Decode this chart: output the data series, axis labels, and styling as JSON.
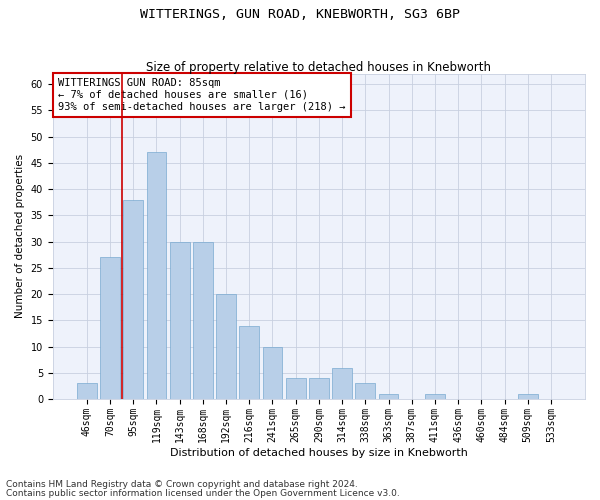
{
  "title": "WITTERINGS, GUN ROAD, KNEBWORTH, SG3 6BP",
  "subtitle": "Size of property relative to detached houses in Knebworth",
  "xlabel": "Distribution of detached houses by size in Knebworth",
  "ylabel": "Number of detached properties",
  "categories": [
    "46sqm",
    "70sqm",
    "95sqm",
    "119sqm",
    "143sqm",
    "168sqm",
    "192sqm",
    "216sqm",
    "241sqm",
    "265sqm",
    "290sqm",
    "314sqm",
    "338sqm",
    "363sqm",
    "387sqm",
    "411sqm",
    "436sqm",
    "460sqm",
    "484sqm",
    "509sqm",
    "533sqm"
  ],
  "values": [
    3,
    27,
    38,
    47,
    30,
    30,
    20,
    14,
    10,
    4,
    4,
    6,
    3,
    1,
    0,
    1,
    0,
    0,
    0,
    1,
    0
  ],
  "bar_color": "#b8cfe8",
  "bar_edge_color": "#7aaad0",
  "vline_x": 1.5,
  "vline_color": "#cc0000",
  "annotation_text": "WITTERINGS GUN ROAD: 85sqm\n← 7% of detached houses are smaller (16)\n93% of semi-detached houses are larger (218) →",
  "annotation_box_color": "#ffffff",
  "annotation_box_edge": "#cc0000",
  "ylim": [
    0,
    62
  ],
  "yticks": [
    0,
    5,
    10,
    15,
    20,
    25,
    30,
    35,
    40,
    45,
    50,
    55,
    60
  ],
  "footnote1": "Contains HM Land Registry data © Crown copyright and database right 2024.",
  "footnote2": "Contains public sector information licensed under the Open Government Licence v3.0.",
  "bg_color": "#eef2fb",
  "grid_color": "#c8d0e0",
  "title_fontsize": 9.5,
  "subtitle_fontsize": 8.5,
  "xlabel_fontsize": 8,
  "ylabel_fontsize": 7.5,
  "tick_fontsize": 7,
  "annotation_fontsize": 7.5,
  "footnote_fontsize": 6.5
}
